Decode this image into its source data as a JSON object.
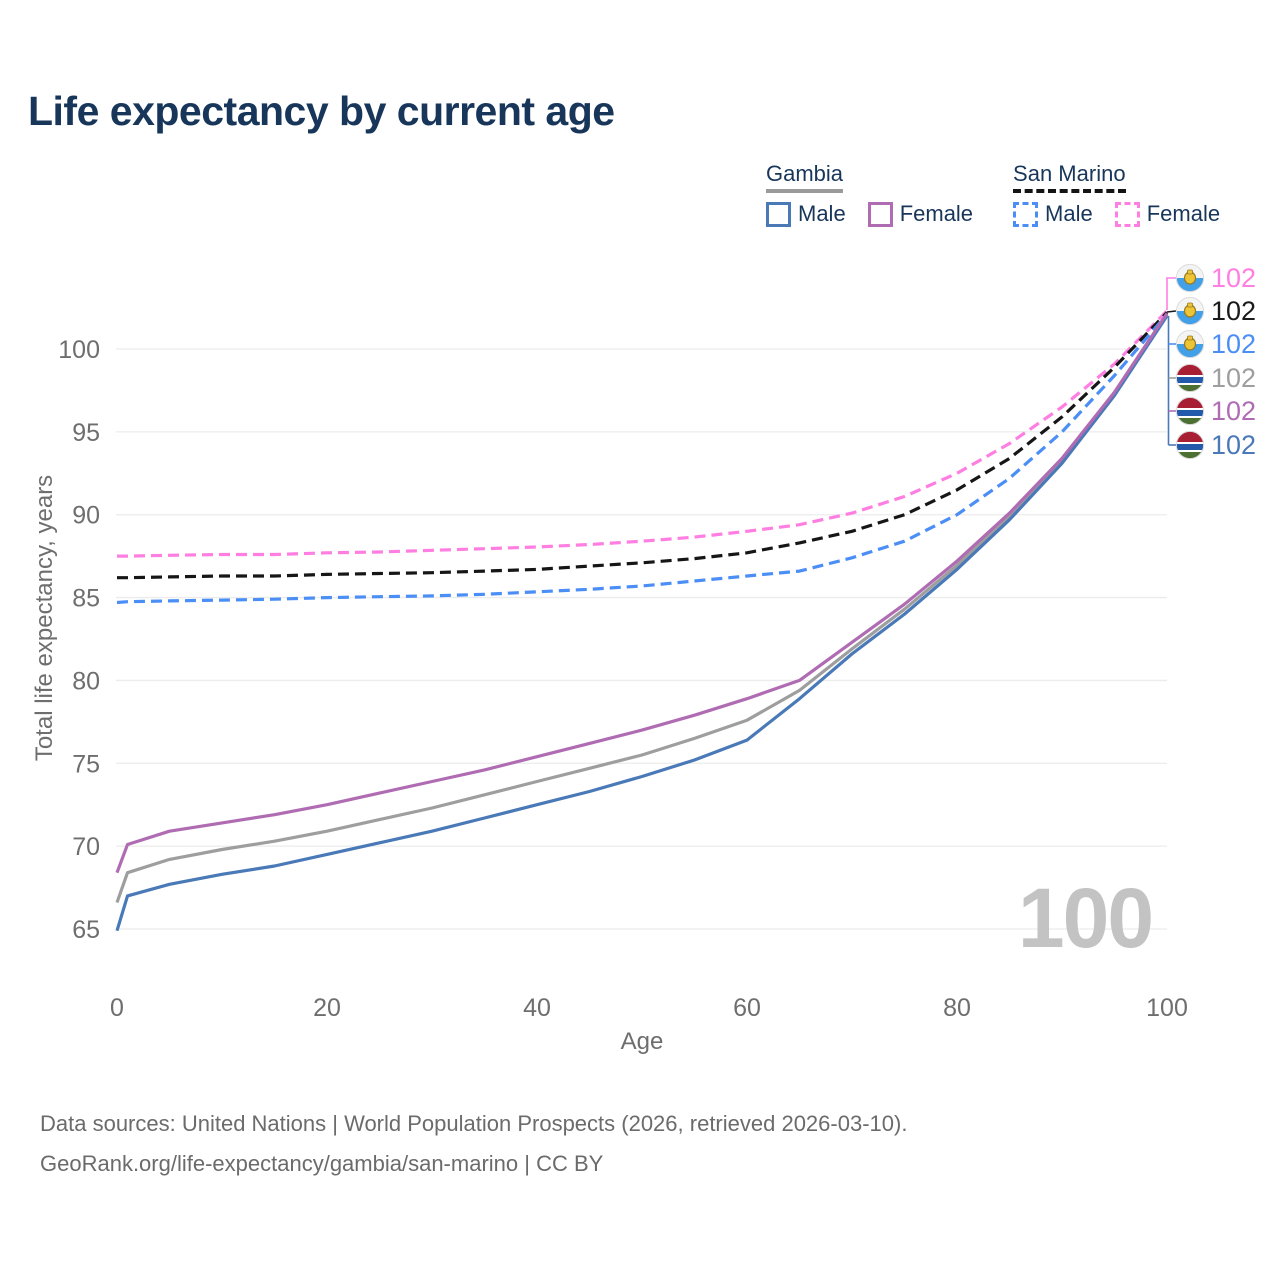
{
  "title": "Life expectancy by current age",
  "watermark": "100",
  "legend": {
    "groups": [
      {
        "name": "Gambia",
        "underline": "solid",
        "underline_color": "#9a9a9a",
        "items": [
          {
            "label": "Male",
            "line": "solid",
            "color": "#4a79b8"
          },
          {
            "label": "Female",
            "line": "solid",
            "color": "#b06cb3"
          }
        ]
      },
      {
        "name": "San Marino",
        "underline": "dashed",
        "underline_color": "#141414",
        "items": [
          {
            "label": "Male",
            "line": "dashed",
            "color": "#4b8ef5"
          },
          {
            "label": "Female",
            "line": "dashed",
            "color": "#ff7ee2"
          }
        ]
      }
    ]
  },
  "footer": {
    "line1": "Data sources: United Nations | World Population Prospects (2026, retrieved 2026-03-10).",
    "line2": "GeoRank.org/life-expectancy/gambia/san-marino | CC BY"
  },
  "chart_data": {
    "type": "line",
    "title": "Life expectancy by current age",
    "xlabel": "Age",
    "ylabel": "Total life expectancy, years",
    "xlim": [
      0,
      100
    ],
    "ylim": [
      65,
      100
    ],
    "xticks": [
      0,
      20,
      40,
      60,
      80,
      100
    ],
    "yticks": [
      65,
      70,
      75,
      80,
      85,
      90,
      95,
      100
    ],
    "grid": "horizontal",
    "legend_position": "top-right",
    "x": [
      0,
      1,
      5,
      10,
      15,
      20,
      25,
      30,
      35,
      40,
      45,
      50,
      55,
      60,
      65,
      70,
      75,
      80,
      85,
      90,
      95,
      100
    ],
    "series": [
      {
        "name": "San Marino Female",
        "country": "san-marino",
        "sex": "female",
        "line": "dashed",
        "color": "#ff7ee2",
        "label_color": "#ff7ee2",
        "end_label": "102",
        "end_row": 0,
        "values": [
          87.5,
          87.5,
          87.55,
          87.6,
          87.6,
          87.7,
          87.75,
          87.85,
          87.95,
          88.05,
          88.2,
          88.4,
          88.65,
          89.0,
          89.4,
          90.1,
          91.1,
          92.5,
          94.3,
          96.5,
          99.1,
          102.3
        ]
      },
      {
        "name": "San Marino Both sexes",
        "country": "san-marino",
        "sex": "both",
        "line": "dashed",
        "color": "#161616",
        "label_color": "#1a1a1a",
        "end_label": "102",
        "end_row": 1,
        "values": [
          86.2,
          86.2,
          86.25,
          86.3,
          86.3,
          86.4,
          86.45,
          86.5,
          86.6,
          86.7,
          86.9,
          87.1,
          87.35,
          87.7,
          88.3,
          89.0,
          90.0,
          91.5,
          93.4,
          95.9,
          98.9,
          102.2
        ]
      },
      {
        "name": "San Marino Male",
        "country": "san-marino",
        "sex": "male",
        "line": "dashed",
        "color": "#4b8ef5",
        "label_color": "#4b8ef5",
        "end_label": "102",
        "end_row": 2,
        "values": [
          84.7,
          84.75,
          84.8,
          84.85,
          84.9,
          85.0,
          85.05,
          85.1,
          85.2,
          85.35,
          85.5,
          85.7,
          86.0,
          86.3,
          86.6,
          87.4,
          88.4,
          90.0,
          92.2,
          95.0,
          98.4,
          102.1
        ]
      },
      {
        "name": "Gambia Both sexes",
        "country": "gambia",
        "sex": "both",
        "line": "solid",
        "color": "#9e9e9e",
        "label_color": "#9e9e9e",
        "end_label": "102",
        "end_row": 3,
        "values": [
          66.6,
          68.4,
          69.2,
          69.8,
          70.3,
          70.9,
          71.6,
          72.3,
          73.1,
          73.9,
          74.7,
          75.5,
          76.5,
          77.6,
          79.4,
          81.9,
          84.3,
          86.95,
          89.9,
          93.25,
          97.3,
          102.08
        ]
      },
      {
        "name": "Gambia Male",
        "country": "gambia",
        "sex": "male",
        "line": "solid",
        "color": "#4a79b8",
        "label_color": "#4a79b8",
        "end_label": "102",
        "end_row": 5,
        "values": [
          64.9,
          67.0,
          67.7,
          68.3,
          68.8,
          69.5,
          70.2,
          70.9,
          71.7,
          72.5,
          73.3,
          74.2,
          75.2,
          76.4,
          78.9,
          81.6,
          84.0,
          86.7,
          89.7,
          93.1,
          97.2,
          102.0
        ]
      },
      {
        "name": "Gambia Female",
        "country": "gambia",
        "sex": "female",
        "line": "solid",
        "color": "#b06cb3",
        "label_color": "#b06cb3",
        "end_label": "102",
        "end_row": 4,
        "values": [
          68.4,
          70.1,
          70.9,
          71.4,
          71.9,
          72.5,
          73.2,
          73.9,
          74.6,
          75.4,
          76.2,
          77.0,
          77.9,
          78.9,
          80.0,
          82.3,
          84.6,
          87.2,
          90.1,
          93.4,
          97.4,
          102.15
        ]
      }
    ]
  }
}
